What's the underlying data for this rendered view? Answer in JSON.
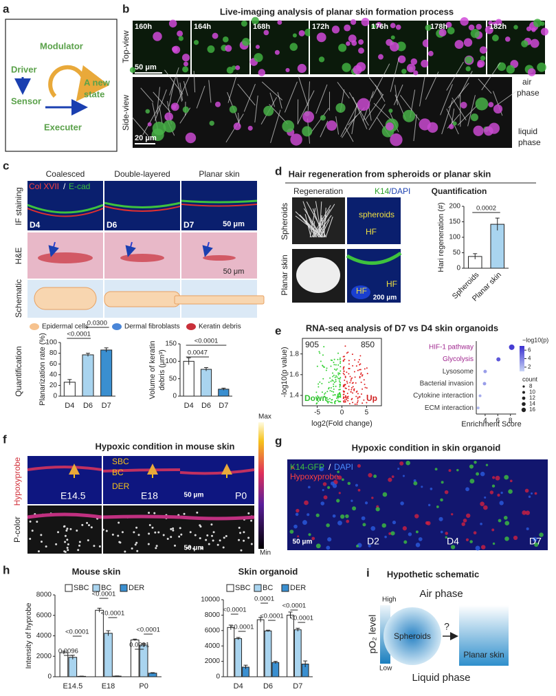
{
  "figure": {
    "panel_labels": [
      "a",
      "b",
      "c",
      "d",
      "e",
      "f",
      "g",
      "h",
      "i"
    ],
    "a": {
      "modulator": "Modulator",
      "driver": "Driver",
      "sensor": "Sensor",
      "new_state": [
        "A new",
        "state"
      ],
      "executer": "Executer"
    },
    "b": {
      "title": "Live-imaging analysis of planar skin formation process",
      "top_view": "Top-view",
      "side_view": "Side-view",
      "times": [
        "160h",
        "164h",
        "168h",
        "172h",
        "176h",
        "178h",
        "182h"
      ],
      "scale_top": "50 μm",
      "scale_side": "20 μm",
      "air": [
        "air",
        "phase"
      ],
      "liquid": [
        "liquid",
        "phase"
      ]
    },
    "c": {
      "columns": [
        "Coalesced",
        "Double-layered",
        "Planar skin"
      ],
      "rows": [
        "IF staining",
        "H&E",
        "Schematic"
      ],
      "stain_col": "Col XVII",
      "slash": "/",
      "stain_ecad": "E-cad",
      "days": [
        "D4",
        "D6",
        "D7"
      ],
      "scale_if": "50 μm",
      "scale_he": "50 μm",
      "legend": [
        "Epidermal cells",
        "Dermal fibroblasts",
        "Keratin debris"
      ],
      "quantification": "Quantification"
    },
    "d": {
      "title": "Hair regeneration from spheroids or planar skin",
      "regeneration": "Regeneration",
      "k14": "K14",
      "dapi": "/DAPI",
      "rows": [
        "Spheroids",
        "Planar skin"
      ],
      "spheroids": "spheroids",
      "hf": [
        "HF",
        "HF",
        "HF"
      ],
      "scale": "200 μm"
    },
    "e": {
      "title": "RNA-seq analysis of D7 vs D4 skin organoids"
    },
    "f": {
      "title": "Hypoxic condition in mouse skin",
      "rows": [
        "Hypoxyprobe",
        "P-color"
      ],
      "stages": [
        "E14.5",
        "E18",
        "P0"
      ],
      "layers": [
        "SBC",
        "BC",
        "DER"
      ],
      "scale_top": "50 μm",
      "scale_bottom": "50 μm",
      "max": "Max",
      "min": "Min"
    },
    "g": {
      "title": "Hypoxic condition in skin organoid",
      "k14": "K14-GFP",
      "slash": "/",
      "dapi": "DAPI",
      "hypoxyprobe": "Hypoxyprobe",
      "scale": "50 μm",
      "days": [
        "D2",
        "D4",
        "D7"
      ]
    },
    "i": {
      "title": "Hypothetic schematic",
      "air": "Air phase",
      "po2": "pO₂ level",
      "high": "High",
      "low": "Low",
      "spheroids": "Spheroids",
      "question": "?",
      "planar": "Planar skin",
      "liquid": "Liquid phase"
    }
  },
  "chart_data": [
    {
      "type": "bar",
      "ylabel": "Planarization rate (%)",
      "categories": [
        "D4",
        "D6",
        "D7"
      ],
      "values": [
        26,
        77,
        86
      ],
      "errors": [
        5,
        3,
        4
      ],
      "colors": [
        "#ffffff",
        "#a9d4ef",
        "#3a8fd0"
      ],
      "ylim": [
        0,
        100
      ],
      "yticks": [
        0,
        20,
        40,
        60,
        80,
        100
      ],
      "annotations": [
        "<0.0001",
        "0.0300"
      ]
    },
    {
      "type": "bar",
      "ylabel": [
        "Volume of keratin",
        "debris (μm³)"
      ],
      "categories": [
        "D4",
        "D6",
        "D7"
      ],
      "values": [
        100,
        77,
        20
      ],
      "errors": [
        10,
        5,
        3
      ],
      "colors": [
        "#ffffff",
        "#a9d4ef",
        "#3a8fd0"
      ],
      "ylim": [
        0,
        150
      ],
      "yticks": [
        0,
        50,
        100,
        150
      ],
      "annotations": [
        "0.0047",
        "<0.0001"
      ]
    },
    {
      "type": "bar",
      "title": "Quantification",
      "ylabel": "Hari regeneration (#)",
      "categories": [
        "Spheroids",
        "Planar skin"
      ],
      "values": [
        38,
        142
      ],
      "errors": [
        9,
        20
      ],
      "colors": [
        "#ffffff",
        "#a9d4ef"
      ],
      "ylim": [
        0,
        200
      ],
      "yticks": [
        0,
        50,
        100,
        150,
        200
      ],
      "annotations": [
        "0.0002"
      ]
    },
    {
      "type": "scatter",
      "xlabel": "log2(Fold change)",
      "ylabel": "-log10(p value)",
      "xlim": [
        -8,
        8
      ],
      "ylim": [
        1.3,
        1.95
      ],
      "xticks": [
        -5,
        0,
        5
      ],
      "yticks": [
        1.4,
        1.6,
        1.8
      ],
      "annotations": [
        "905",
        "850",
        "Down",
        "Up"
      ]
    },
    {
      "type": "dot",
      "categories": [
        "HIF-1 pathway",
        "Glycolysis",
        "Lysosome",
        "Bacterial invasion",
        "Cytokine interaction",
        "ECM interaction"
      ],
      "values": [
        8.2,
        6.1,
        4.0,
        3.9,
        3.2,
        2.9
      ],
      "sizes": [
        16,
        12,
        10,
        10,
        8,
        8
      ],
      "color_values": [
        6.5,
        5.5,
        3,
        3,
        2.5,
        2
      ],
      "label_colors": [
        "#a0278f",
        "#a0278f",
        "#333333",
        "#333333",
        "#333333",
        "#333333"
      ],
      "xlim": [
        2.6,
        8.9
      ],
      "xticks": [
        4,
        6,
        8
      ],
      "xlabel": "Enrichment Score",
      "colorbar_title": "−log10(p)",
      "clim": [
        1,
        7
      ],
      "colorbar_ticks": [
        2,
        4,
        6
      ],
      "size_title": "count",
      "size_ticks": [
        8,
        10,
        12,
        14,
        16
      ]
    },
    {
      "type": "grouped_bar",
      "title": "Mouse skin",
      "ylabel": "Intensity of hyprobe",
      "categories": [
        "E14.5",
        "E18",
        "P0"
      ],
      "series": [
        {
          "name": "SBC",
          "color": "#ffffff",
          "values": [
            2350,
            6500,
            3600
          ],
          "errors": [
            150,
            200,
            80
          ]
        },
        {
          "name": "BC",
          "color": "#a9d4ef",
          "values": [
            1900,
            4250,
            3100
          ],
          "errors": [
            200,
            250,
            150
          ]
        },
        {
          "name": "DER",
          "color": "#3a8fd0",
          "values": [
            40,
            60,
            350
          ],
          "errors": [
            20,
            20,
            50
          ]
        }
      ],
      "ylim": [
        0,
        8000
      ],
      "yticks": [
        0,
        2000,
        4000,
        6000,
        8000
      ],
      "annotations": [
        "0.0096",
        "<0.0001",
        "<0.0001",
        "<0.0001",
        "0.0091",
        "<0.0001"
      ]
    },
    {
      "type": "grouped_bar",
      "title": "Skin organoid",
      "categories": [
        "D4",
        "D6",
        "D7"
      ],
      "series": [
        {
          "name": "SBC",
          "color": "#ffffff",
          "values": [
            6400,
            7400,
            8000
          ],
          "errors": [
            300,
            300,
            400
          ]
        },
        {
          "name": "BC",
          "color": "#a9d4ef",
          "values": [
            4950,
            5950,
            6100
          ],
          "errors": [
            150,
            100,
            200
          ]
        },
        {
          "name": "DER",
          "color": "#3a8fd0",
          "values": [
            1250,
            1850,
            1650
          ],
          "errors": [
            250,
            150,
            400
          ]
        }
      ],
      "ylim": [
        0,
        10000
      ],
      "yticks": [
        0,
        2000,
        4000,
        6000,
        8000,
        10000
      ],
      "annotations": [
        "<0.0001",
        "<0.0001",
        "0.0001",
        "<0.0001",
        "<0.0001",
        "<0.0001"
      ]
    }
  ]
}
